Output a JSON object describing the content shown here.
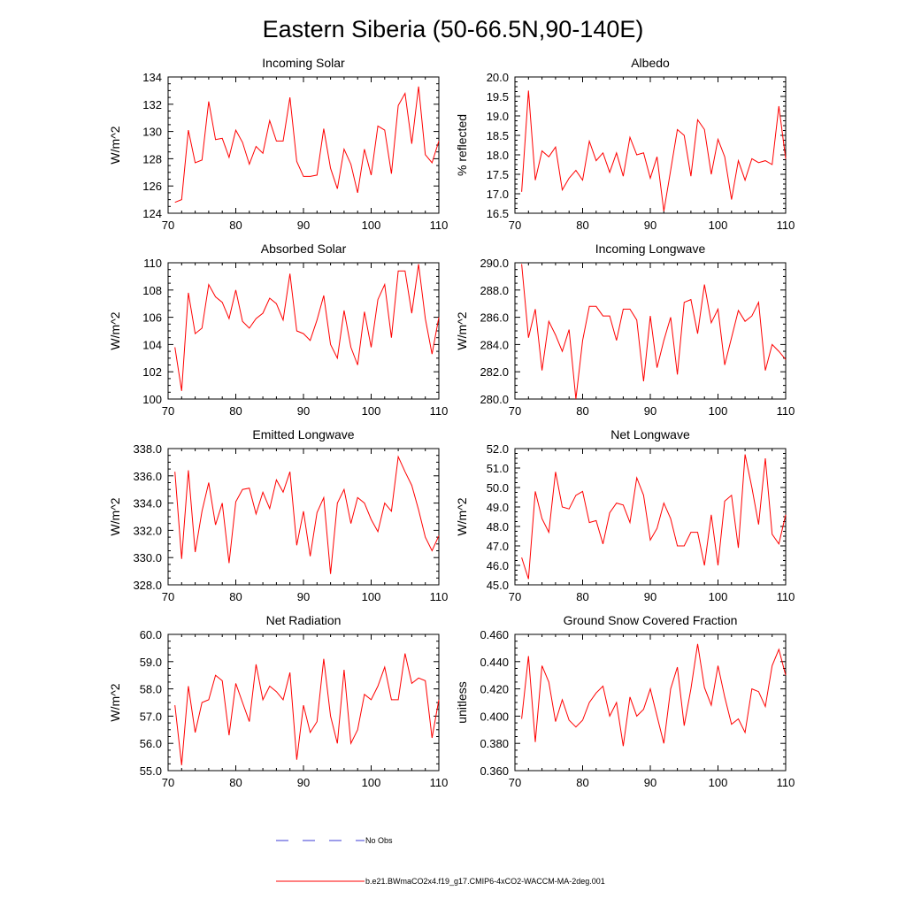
{
  "title": "Eastern Siberia (50-66.5N,90-140E)",
  "legend": {
    "obs_label": "No Obs",
    "obs_color": "#3b3bd6",
    "model_label": "b.e21.BWmaCO2x4.f19_g17.CMIP6-4xCO2-WACCM-MA-2deg.001",
    "model_color": "#ff0000"
  },
  "chart_data": [
    {
      "type": "line",
      "title": "Incoming Solar",
      "ylabel": "W/m^2",
      "xlim": [
        70,
        110
      ],
      "ylim": [
        124,
        134
      ],
      "xticks": [
        70,
        80,
        90,
        100,
        110
      ],
      "xtick_labels": [
        "70",
        "80",
        "90",
        "100",
        "110"
      ],
      "yticks": [
        124,
        126,
        128,
        130,
        132,
        134
      ],
      "ytick_labels": [
        "124",
        "126",
        "128",
        "130",
        "132",
        "134"
      ],
      "x_start": 71,
      "values": [
        124.8,
        125.0,
        130.1,
        127.7,
        127.9,
        132.2,
        129.4,
        129.5,
        128.1,
        130.1,
        129.2,
        127.6,
        128.9,
        128.4,
        130.8,
        129.3,
        129.3,
        132.5,
        127.8,
        126.7,
        126.7,
        126.8,
        130.2,
        127.3,
        125.8,
        128.7,
        127.6,
        125.5,
        128.7,
        126.8,
        130.4,
        130.1,
        126.9,
        131.9,
        132.8,
        129.1,
        133.3,
        128.3,
        127.7,
        129.3
      ]
    },
    {
      "type": "line",
      "title": "Albedo",
      "ylabel": "% reflected",
      "xlim": [
        70,
        110
      ],
      "ylim": [
        16.5,
        20.0
      ],
      "xticks": [
        70,
        80,
        90,
        100,
        110
      ],
      "xtick_labels": [
        "70",
        "80",
        "90",
        "100",
        "110"
      ],
      "yticks": [
        16.5,
        17.0,
        17.5,
        18.0,
        18.5,
        19.0,
        19.5,
        20.0
      ],
      "ytick_labels": [
        "16.5",
        "17.0",
        "17.5",
        "18.0",
        "18.5",
        "19.0",
        "19.5",
        "20.0"
      ],
      "x_start": 71,
      "values": [
        17.05,
        19.65,
        17.35,
        18.1,
        17.95,
        18.2,
        17.1,
        17.4,
        17.6,
        17.35,
        18.35,
        17.85,
        18.05,
        17.55,
        18.05,
        17.45,
        18.45,
        18.0,
        18.05,
        17.4,
        17.95,
        16.55,
        17.6,
        18.65,
        18.5,
        17.45,
        18.9,
        18.65,
        17.5,
        18.4,
        17.95,
        16.85,
        17.85,
        17.35,
        17.9,
        17.8,
        17.85,
        17.75,
        19.25,
        17.9
      ]
    },
    {
      "type": "line",
      "title": "Absorbed Solar",
      "ylabel": "W/m^2",
      "xlim": [
        70,
        110
      ],
      "ylim": [
        100,
        110
      ],
      "xticks": [
        70,
        80,
        90,
        100,
        110
      ],
      "xtick_labels": [
        "70",
        "80",
        "90",
        "100",
        "110"
      ],
      "yticks": [
        100,
        102,
        104,
        106,
        108,
        110
      ],
      "ytick_labels": [
        "100",
        "102",
        "104",
        "106",
        "108",
        "110"
      ],
      "x_start": 71,
      "values": [
        103.8,
        100.6,
        107.8,
        104.8,
        105.2,
        108.4,
        107.5,
        107.1,
        105.9,
        108.0,
        105.7,
        105.2,
        105.9,
        106.3,
        107.4,
        107.0,
        105.8,
        109.2,
        105.0,
        104.8,
        104.3,
        105.8,
        107.6,
        104.0,
        103.0,
        106.5,
        103.8,
        102.5,
        106.4,
        103.8,
        107.3,
        108.4,
        104.5,
        109.4,
        109.4,
        106.3,
        109.9,
        105.9,
        103.3,
        106.0
      ]
    },
    {
      "type": "line",
      "title": "Incoming Longwave",
      "ylabel": "W/m^2",
      "xlim": [
        70,
        110
      ],
      "ylim": [
        280.0,
        290.0
      ],
      "xticks": [
        70,
        80,
        90,
        100,
        110
      ],
      "xtick_labels": [
        "70",
        "80",
        "90",
        "100",
        "110"
      ],
      "yticks": [
        280.0,
        282.0,
        284.0,
        286.0,
        288.0,
        290.0
      ],
      "ytick_labels": [
        "280.0",
        "282.0",
        "284.0",
        "286.0",
        "288.0",
        "290.0"
      ],
      "x_start": 71,
      "values": [
        289.9,
        284.5,
        286.6,
        282.1,
        285.7,
        284.7,
        283.5,
        285.1,
        280.0,
        284.3,
        286.8,
        286.8,
        286.1,
        286.1,
        284.3,
        286.6,
        286.6,
        285.8,
        281.3,
        286.1,
        282.3,
        284.3,
        286.0,
        281.8,
        287.1,
        287.3,
        284.8,
        288.4,
        285.6,
        286.6,
        282.5,
        284.5,
        286.5,
        285.7,
        286.1,
        287.1,
        282.1,
        284.0,
        283.5,
        282.9
      ]
    },
    {
      "type": "line",
      "title": "Emitted Longwave",
      "ylabel": "W/m^2",
      "xlim": [
        70,
        110
      ],
      "ylim": [
        328.0,
        338.0
      ],
      "xticks": [
        70,
        80,
        90,
        100,
        110
      ],
      "xtick_labels": [
        "70",
        "80",
        "90",
        "100",
        "110"
      ],
      "yticks": [
        328.0,
        330.0,
        332.0,
        334.0,
        336.0,
        338.0
      ],
      "ytick_labels": [
        "328.0",
        "330.0",
        "332.0",
        "334.0",
        "336.0",
        "338.0"
      ],
      "x_start": 71,
      "values": [
        336.3,
        329.9,
        336.4,
        330.4,
        333.4,
        335.5,
        332.4,
        334.0,
        329.6,
        334.1,
        335.0,
        335.1,
        333.2,
        334.8,
        333.6,
        335.7,
        334.8,
        336.3,
        330.9,
        333.4,
        330.1,
        333.3,
        334.4,
        328.8,
        334.0,
        335.0,
        332.5,
        334.4,
        334.0,
        332.8,
        331.9,
        334.0,
        333.4,
        337.4,
        336.3,
        335.3,
        333.5,
        331.5,
        330.5,
        331.6
      ]
    },
    {
      "type": "line",
      "title": "Net Longwave",
      "ylabel": "W/m^2",
      "xlim": [
        70,
        110
      ],
      "ylim": [
        45.0,
        52.0
      ],
      "xticks": [
        70,
        80,
        90,
        100,
        110
      ],
      "xtick_labels": [
        "70",
        "80",
        "90",
        "100",
        "110"
      ],
      "yticks": [
        45.0,
        46.0,
        47.0,
        48.0,
        49.0,
        50.0,
        51.0,
        52.0
      ],
      "ytick_labels": [
        "45.0",
        "46.0",
        "47.0",
        "48.0",
        "49.0",
        "50.0",
        "51.0",
        "52.0"
      ],
      "x_start": 71,
      "values": [
        46.4,
        45.3,
        49.8,
        48.4,
        47.7,
        50.8,
        49.0,
        48.9,
        49.6,
        49.8,
        48.2,
        48.3,
        47.1,
        48.7,
        49.2,
        49.1,
        48.2,
        50.5,
        49.6,
        47.3,
        47.9,
        49.2,
        48.4,
        47.0,
        47.0,
        47.7,
        47.7,
        46.0,
        48.6,
        46.0,
        49.3,
        49.6,
        46.9,
        51.7,
        50.0,
        48.1,
        51.5,
        47.6,
        47.1,
        48.6
      ]
    },
    {
      "type": "line",
      "title": "Net Radiation",
      "ylabel": "W/m^2",
      "xlim": [
        70,
        110
      ],
      "ylim": [
        55.0,
        60.0
      ],
      "xticks": [
        70,
        80,
        90,
        100,
        110
      ],
      "xtick_labels": [
        "70",
        "80",
        "90",
        "100",
        "110"
      ],
      "yticks": [
        55.0,
        56.0,
        57.0,
        58.0,
        59.0,
        60.0
      ],
      "ytick_labels": [
        "55.0",
        "56.0",
        "57.0",
        "58.0",
        "59.0",
        "60.0"
      ],
      "x_start": 71,
      "values": [
        57.4,
        55.2,
        58.1,
        56.4,
        57.5,
        57.6,
        58.5,
        58.3,
        56.3,
        58.2,
        57.5,
        56.8,
        58.9,
        57.6,
        58.1,
        57.9,
        57.6,
        58.6,
        55.4,
        57.4,
        56.4,
        56.8,
        59.1,
        57.0,
        56.0,
        58.7,
        56.0,
        56.5,
        57.8,
        57.6,
        58.1,
        58.8,
        57.6,
        57.6,
        59.3,
        58.2,
        58.4,
        58.3,
        56.2,
        57.6
      ]
    },
    {
      "type": "line",
      "title": "Ground Snow Covered Fraction",
      "ylabel": "unitless",
      "xlim": [
        70,
        110
      ],
      "ylim": [
        0.36,
        0.46
      ],
      "xticks": [
        70,
        80,
        90,
        100,
        110
      ],
      "xtick_labels": [
        "70",
        "80",
        "90",
        "100",
        "110"
      ],
      "yticks": [
        0.36,
        0.38,
        0.4,
        0.42,
        0.44,
        0.46
      ],
      "ytick_labels": [
        "0.360",
        "0.380",
        "0.400",
        "0.420",
        "0.440",
        "0.460"
      ],
      "x_start": 71,
      "values": [
        0.398,
        0.444,
        0.381,
        0.437,
        0.425,
        0.396,
        0.412,
        0.397,
        0.392,
        0.397,
        0.41,
        0.417,
        0.422,
        0.4,
        0.41,
        0.378,
        0.414,
        0.4,
        0.405,
        0.42,
        0.4,
        0.38,
        0.42,
        0.436,
        0.393,
        0.42,
        0.453,
        0.421,
        0.408,
        0.437,
        0.414,
        0.394,
        0.398,
        0.388,
        0.42,
        0.418,
        0.407,
        0.437,
        0.449,
        0.43
      ]
    }
  ]
}
